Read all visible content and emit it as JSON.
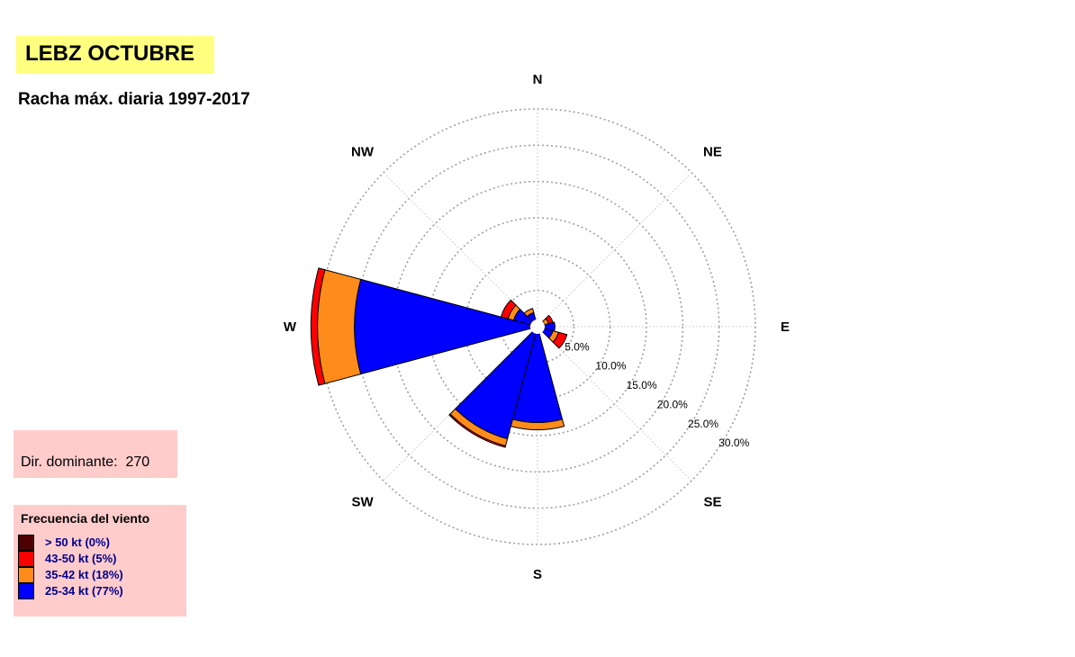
{
  "header": {
    "title": "LEBZ OCTUBRE",
    "subtitle": "Racha máx. diaria 1997-2017"
  },
  "dominant": {
    "text": "Dir. dominante:  270"
  },
  "legend": {
    "title": "Frecuencia del viento",
    "items": [
      {
        "label": "> 50 kt (0%)",
        "color": "#4d0000"
      },
      {
        "label": "43-50 kt (5%)",
        "color": "#ff0000"
      },
      {
        "label": "35-42 kt (18%)",
        "color": "#ff8c1a"
      },
      {
        "label": "25-34 kt (77%)",
        "color": "#0000ff"
      }
    ]
  },
  "chart_data": {
    "type": "windrose",
    "directions": [
      "N",
      "NE",
      "E",
      "SE",
      "S",
      "SW",
      "W",
      "NW"
    ],
    "rlim": [
      0,
      30
    ],
    "ring_labels": [
      "5.0%",
      "10.0%",
      "15.0%",
      "20.0%",
      "25.0%",
      "30.0%"
    ],
    "ring_values": [
      5,
      10,
      15,
      20,
      25,
      30
    ],
    "sector_width_deg": 30,
    "series": [
      {
        "name": "25-34 kt",
        "color": "#0000ff"
      },
      {
        "name": "35-42 kt",
        "color": "#ff8c1a"
      },
      {
        "name": "43-50 kt",
        "color": "#ff0000"
      },
      {
        "name": "> 50 kt",
        "color": "#4d0000"
      }
    ],
    "sectors": [
      {
        "dir_deg": 0,
        "values": [
          0,
          0,
          0,
          0
        ]
      },
      {
        "dir_deg": 30,
        "values": [
          0.2,
          0,
          0.2,
          0
        ]
      },
      {
        "dir_deg": 60,
        "values": [
          1.0,
          0.6,
          0.6,
          0
        ]
      },
      {
        "dir_deg": 90,
        "values": [
          2.4,
          0,
          0,
          0
        ]
      },
      {
        "dir_deg": 120,
        "values": [
          2.2,
          0.8,
          1.2,
          0
        ]
      },
      {
        "dir_deg": 150,
        "values": [
          0.5,
          0,
          0.2,
          0
        ]
      },
      {
        "dir_deg": 180,
        "values": [
          13.2,
          1.0,
          0,
          0
        ]
      },
      {
        "dir_deg": 210,
        "values": [
          16.0,
          1.0,
          0.2,
          0
        ]
      },
      {
        "dir_deg": 240,
        "values": [
          0.5,
          0.2,
          0.2,
          0
        ]
      },
      {
        "dir_deg": 270,
        "values": [
          25.2,
          5.1,
          0.9,
          0
        ]
      },
      {
        "dir_deg": 300,
        "values": [
          3.4,
          0.8,
          1.0,
          0
        ]
      },
      {
        "dir_deg": 330,
        "values": [
          2.0,
          0.6,
          0,
          0
        ]
      }
    ]
  }
}
